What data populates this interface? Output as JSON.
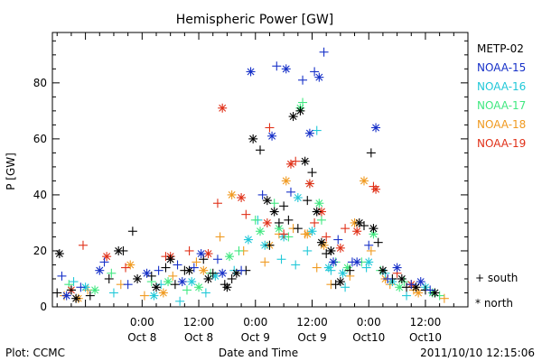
{
  "chart_data": {
    "type": "scatter",
    "title": "Hemispheric Power [GW]",
    "xlabel": "Date and Time",
    "ylabel": "P [GW]",
    "xlim": [
      "2011-10-07 05:00",
      "2011-10-10 21:00"
    ],
    "ylim": [
      0,
      98
    ],
    "yticks": [
      0,
      20,
      40,
      60,
      80
    ],
    "xticks": [
      {
        "x": "2011-10-08 00:00",
        "line1": "0:00",
        "line2": "Oct 8"
      },
      {
        "x": "2011-10-08 12:00",
        "line1": "12:00",
        "line2": "Oct 8"
      },
      {
        "x": "2011-10-09 00:00",
        "line1": "0:00",
        "line2": "Oct 9"
      },
      {
        "x": "2011-10-09 12:00",
        "line1": "12:00",
        "line2": "Oct 9"
      },
      {
        "x": "2011-10-10 00:00",
        "line1": "0:00",
        "line2": "Oct10"
      },
      {
        "x": "2011-10-10 12:00",
        "line1": "12:00",
        "line2": "Oct10"
      }
    ],
    "legend_position": "right",
    "marker_legend": [
      {
        "symbol": "+",
        "label": "south"
      },
      {
        "symbol": "*",
        "label": "north"
      }
    ],
    "series": [
      {
        "name": "METP-02",
        "color": "#000000",
        "south": [
          [
            "2011-10-07 06:00",
            5
          ],
          [
            "2011-10-07 09:00",
            6
          ],
          [
            "2011-10-07 13:00",
            4
          ],
          [
            "2011-10-07 17:00",
            10
          ],
          [
            "2011-10-07 20:00",
            20
          ],
          [
            "2011-10-08 02:00",
            11
          ],
          [
            "2011-10-08 05:00",
            14
          ],
          [
            "2011-10-08 07:00",
            8
          ],
          [
            "2011-10-08 09:00",
            13
          ],
          [
            "2011-10-08 13:00",
            17
          ],
          [
            "2011-10-08 15:00",
            12
          ],
          [
            "2011-10-08 19:00",
            10
          ],
          [
            "2011-10-08 22:00",
            13
          ],
          [
            "2011-10-09 01:00",
            56
          ],
          [
            "2011-10-09 03:00",
            22
          ],
          [
            "2011-10-09 05:00",
            30
          ],
          [
            "2011-10-09 07:00",
            31
          ],
          [
            "2011-10-09 09:00",
            28
          ],
          [
            "2011-10-09 11:00",
            38
          ],
          [
            "2011-10-09 12:00",
            48
          ],
          [
            "2011-10-09 15:00",
            19
          ],
          [
            "2011-10-09 17:00",
            8
          ],
          [
            "2011-10-09 20:00",
            13
          ],
          [
            "2011-10-09 23:00",
            29
          ],
          [
            "2011-10-10 02:00",
            23
          ],
          [
            "2011-10-10 05:00",
            10
          ],
          [
            "2011-10-10 08:00",
            7
          ],
          [
            "2011-10-10 12:00",
            6
          ],
          [
            "2011-10-07 22:00",
            27
          ],
          [
            "2011-10-10 00:30",
            55
          ],
          [
            "2011-10-08 17:30",
            8
          ],
          [
            "2011-10-09 06:00",
            36
          ]
        ],
        "north": [
          [
            "2011-10-07 06:30",
            19
          ],
          [
            "2011-10-07 10:00",
            3
          ],
          [
            "2011-10-07 19:00",
            20
          ],
          [
            "2011-10-07 23:00",
            10
          ],
          [
            "2011-10-08 03:00",
            7
          ],
          [
            "2011-10-08 06:00",
            17
          ],
          [
            "2011-10-08 10:00",
            13
          ],
          [
            "2011-10-08 14:00",
            10
          ],
          [
            "2011-10-08 18:00",
            7
          ],
          [
            "2011-10-08 20:00",
            12
          ],
          [
            "2011-10-08 23:30",
            60
          ],
          [
            "2011-10-09 02:30",
            38
          ],
          [
            "2011-10-09 04:00",
            34
          ],
          [
            "2011-10-09 08:00",
            68
          ],
          [
            "2011-10-09 09:30",
            70
          ],
          [
            "2011-10-09 10:30",
            52
          ],
          [
            "2011-10-09 13:00",
            34
          ],
          [
            "2011-10-09 14:00",
            23
          ],
          [
            "2011-10-09 16:00",
            20
          ],
          [
            "2011-10-09 18:00",
            9
          ],
          [
            "2011-10-09 22:00",
            30
          ],
          [
            "2011-10-10 01:00",
            28
          ],
          [
            "2011-10-10 03:00",
            13
          ],
          [
            "2011-10-10 07:00",
            10
          ],
          [
            "2011-10-10 10:00",
            7
          ],
          [
            "2011-10-10 14:00",
            5
          ]
        ]
      },
      {
        "name": "NOAA-15",
        "color": "#1630c8",
        "south": [
          [
            "2011-10-07 07:00",
            11
          ],
          [
            "2011-10-07 11:00",
            7
          ],
          [
            "2011-10-07 16:00",
            16
          ],
          [
            "2011-10-07 21:00",
            8
          ],
          [
            "2011-10-08 03:30",
            13
          ],
          [
            "2011-10-08 07:30",
            15
          ],
          [
            "2011-10-08 11:00",
            14
          ],
          [
            "2011-10-08 16:00",
            17
          ],
          [
            "2011-10-08 21:00",
            13
          ],
          [
            "2011-10-09 01:30",
            40
          ],
          [
            "2011-10-09 04:30",
            86
          ],
          [
            "2011-10-09 07:30",
            41
          ],
          [
            "2011-10-09 10:00",
            81
          ],
          [
            "2011-10-09 12:30",
            84
          ],
          [
            "2011-10-09 14:30",
            91
          ],
          [
            "2011-10-09 17:30",
            24
          ],
          [
            "2011-10-09 20:30",
            16
          ],
          [
            "2011-10-10 00:00",
            22
          ],
          [
            "2011-10-10 04:00",
            10
          ],
          [
            "2011-10-10 09:00",
            8
          ],
          [
            "2011-10-10 13:00",
            6
          ]
        ],
        "north": [
          [
            "2011-10-07 08:00",
            4
          ],
          [
            "2011-10-07 15:00",
            13
          ],
          [
            "2011-10-08 01:00",
            12
          ],
          [
            "2011-10-08 08:30",
            9
          ],
          [
            "2011-10-08 12:30",
            19
          ],
          [
            "2011-10-08 17:00",
            12
          ],
          [
            "2011-10-08 23:00",
            84
          ],
          [
            "2011-10-09 03:30",
            61
          ],
          [
            "2011-10-09 06:30",
            85
          ],
          [
            "2011-10-09 11:30",
            62
          ],
          [
            "2011-10-09 13:30",
            82
          ],
          [
            "2011-10-09 16:30",
            16
          ],
          [
            "2011-10-09 21:30",
            16
          ],
          [
            "2011-10-10 01:30",
            64
          ],
          [
            "2011-10-10 06:00",
            14
          ],
          [
            "2011-10-10 11:00",
            9
          ]
        ]
      },
      {
        "name": "NOAA-16",
        "color": "#20c8d8",
        "south": [
          [
            "2011-10-07 09:30",
            9
          ],
          [
            "2011-10-07 18:00",
            5
          ],
          [
            "2011-10-08 04:00",
            8
          ],
          [
            "2011-10-08 08:00",
            2
          ],
          [
            "2011-10-08 13:30",
            5
          ],
          [
            "2011-10-08 19:30",
            13
          ],
          [
            "2011-10-09 00:30",
            31
          ],
          [
            "2011-10-09 05:30",
            17
          ],
          [
            "2011-10-09 08:30",
            15
          ],
          [
            "2011-10-09 11:00",
            20
          ],
          [
            "2011-10-09 13:00",
            63
          ],
          [
            "2011-10-09 16:00",
            13
          ],
          [
            "2011-10-09 19:00",
            7
          ],
          [
            "2011-10-09 23:30",
            14
          ],
          [
            "2011-10-10 03:30",
            12
          ],
          [
            "2011-10-10 08:00",
            4
          ]
        ],
        "north": [
          [
            "2011-10-07 12:00",
            7
          ],
          [
            "2011-10-08 02:30",
            4
          ],
          [
            "2011-10-08 10:30",
            9
          ],
          [
            "2011-10-08 15:30",
            11
          ],
          [
            "2011-10-08 22:30",
            24
          ],
          [
            "2011-10-09 02:00",
            22
          ],
          [
            "2011-10-09 06:00",
            25
          ],
          [
            "2011-10-09 09:00",
            39
          ],
          [
            "2011-10-09 12:00",
            27
          ],
          [
            "2011-10-09 15:30",
            14
          ],
          [
            "2011-10-09 18:30",
            12
          ],
          [
            "2011-10-10 00:00",
            16
          ],
          [
            "2011-10-10 05:00",
            9
          ],
          [
            "2011-10-10 12:00",
            7
          ]
        ]
      },
      {
        "name": "NOAA-17",
        "color": "#40e880",
        "south": [
          [
            "2011-10-07 08:30",
            8
          ],
          [
            "2011-10-07 17:30",
            12
          ],
          [
            "2011-10-08 02:00",
            9
          ],
          [
            "2011-10-08 09:30",
            6
          ],
          [
            "2011-10-08 14:30",
            12
          ],
          [
            "2011-10-08 20:30",
            20
          ],
          [
            "2011-10-09 00:00",
            31
          ],
          [
            "2011-10-09 04:00",
            37
          ],
          [
            "2011-10-09 07:00",
            25
          ],
          [
            "2011-10-09 10:00",
            73
          ],
          [
            "2011-10-09 11:30",
            44
          ],
          [
            "2011-10-09 14:00",
            31
          ],
          [
            "2011-10-09 17:00",
            16
          ],
          [
            "2011-10-09 22:30",
            16
          ],
          [
            "2011-10-10 02:30",
            13
          ],
          [
            "2011-10-10 07:30",
            9
          ],
          [
            "2011-10-10 15:00",
            4
          ]
        ],
        "north": [
          [
            "2011-10-07 14:00",
            6
          ],
          [
            "2011-10-08 05:30",
            9
          ],
          [
            "2011-10-08 12:00",
            7
          ],
          [
            "2011-10-08 18:30",
            18
          ],
          [
            "2011-10-09 01:00",
            27
          ],
          [
            "2011-10-09 05:00",
            28
          ],
          [
            "2011-10-09 09:30",
            71
          ],
          [
            "2011-10-09 13:30",
            37
          ],
          [
            "2011-10-09 19:30",
            14
          ],
          [
            "2011-10-10 01:00",
            26
          ],
          [
            "2011-10-10 06:30",
            7
          ],
          [
            "2011-10-10 13:30",
            5
          ]
        ]
      },
      {
        "name": "NOAA-18",
        "color": "#f09a20",
        "south": [
          [
            "2011-10-07 07:30",
            4
          ],
          [
            "2011-10-07 12:30",
            6
          ],
          [
            "2011-10-07 19:30",
            8
          ],
          [
            "2011-10-08 00:30",
            4
          ],
          [
            "2011-10-08 06:30",
            11
          ],
          [
            "2011-10-08 11:30",
            16
          ],
          [
            "2011-10-08 16:30",
            25
          ],
          [
            "2011-10-08 21:30",
            20
          ],
          [
            "2011-10-09 02:00",
            16
          ],
          [
            "2011-10-09 05:00",
            26
          ],
          [
            "2011-10-09 08:00",
            28
          ],
          [
            "2011-10-09 10:30",
            26
          ],
          [
            "2011-10-09 13:00",
            14
          ],
          [
            "2011-10-09 16:00",
            8
          ],
          [
            "2011-10-09 20:00",
            11
          ],
          [
            "2011-10-10 00:30",
            20
          ],
          [
            "2011-10-10 04:30",
            8
          ],
          [
            "2011-10-10 09:30",
            6
          ],
          [
            "2011-10-10 16:00",
            3
          ]
        ],
        "north": [
          [
            "2011-10-07 10:30",
            3
          ],
          [
            "2011-10-07 21:30",
            15
          ],
          [
            "2011-10-08 04:30",
            5
          ],
          [
            "2011-10-08 13:00",
            13
          ],
          [
            "2011-10-08 19:00",
            40
          ],
          [
            "2011-10-09 03:00",
            22
          ],
          [
            "2011-10-09 06:30",
            45
          ],
          [
            "2011-10-09 11:00",
            26
          ],
          [
            "2011-10-09 14:30",
            22
          ],
          [
            "2011-10-09 21:00",
            30
          ],
          [
            "2011-10-09 23:00",
            45
          ],
          [
            "2011-10-10 03:30",
            10
          ],
          [
            "2011-10-10 10:30",
            5
          ]
        ]
      },
      {
        "name": "NOAA-19",
        "color": "#e03018",
        "south": [
          [
            "2011-10-07 11:30",
            22
          ],
          [
            "2011-10-07 20:30",
            14
          ],
          [
            "2011-10-08 05:00",
            18
          ],
          [
            "2011-10-08 10:00",
            20
          ],
          [
            "2011-10-08 16:00",
            37
          ],
          [
            "2011-10-08 22:00",
            33
          ],
          [
            "2011-10-09 03:00",
            64
          ],
          [
            "2011-10-09 06:00",
            26
          ],
          [
            "2011-10-09 08:30",
            52
          ],
          [
            "2011-10-09 12:30",
            30
          ],
          [
            "2011-10-09 15:00",
            25
          ],
          [
            "2011-10-09 19:00",
            28
          ],
          [
            "2011-10-10 01:00",
            43
          ],
          [
            "2011-10-10 06:00",
            12
          ]
        ],
        "north": [
          [
            "2011-10-07 09:00",
            6
          ],
          [
            "2011-10-07 16:30",
            18
          ],
          [
            "2011-10-08 06:00",
            18
          ],
          [
            "2011-10-08 14:00",
            19
          ],
          [
            "2011-10-08 17:00",
            71
          ],
          [
            "2011-10-08 21:00",
            39
          ],
          [
            "2011-10-09 02:30",
            30
          ],
          [
            "2011-10-09 07:30",
            51
          ],
          [
            "2011-10-09 11:30",
            44
          ],
          [
            "2011-10-09 14:00",
            34
          ],
          [
            "2011-10-09 18:00",
            21
          ],
          [
            "2011-10-09 21:30",
            27
          ],
          [
            "2011-10-10 01:30",
            42
          ],
          [
            "2011-10-10 09:00",
            8
          ]
        ]
      }
    ]
  },
  "footer": {
    "left": "Plot: CCMC",
    "center": "Date and Time",
    "right": "2011/10/10 12:15:06"
  }
}
